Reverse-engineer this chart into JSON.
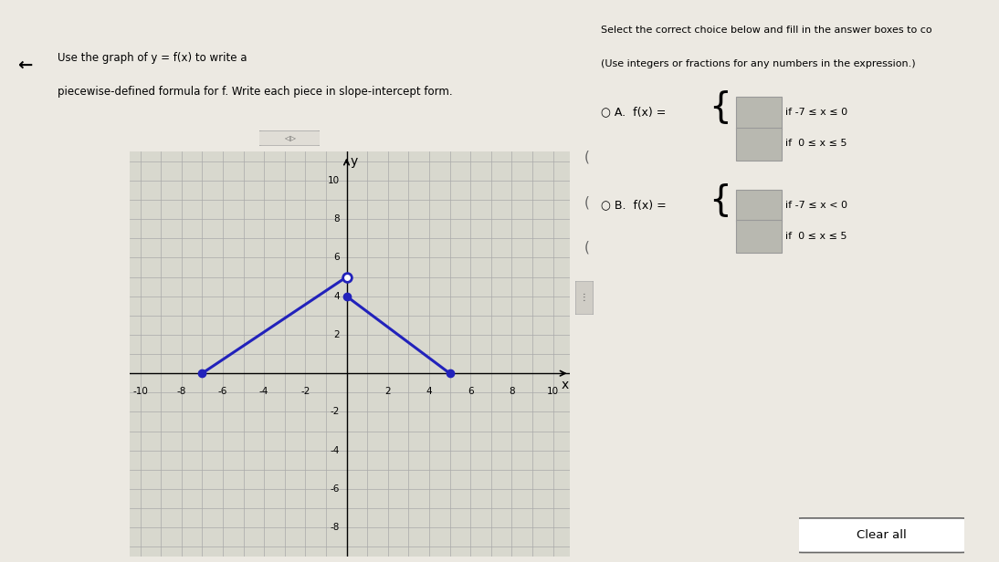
{
  "graph_xlim": [
    -10.5,
    10.8
  ],
  "graph_ylim": [
    -9.5,
    11.5
  ],
  "xticks": [
    -10,
    -8,
    -6,
    -4,
    -2,
    2,
    4,
    6,
    8,
    10
  ],
  "yticks": [
    -8,
    -6,
    -4,
    -2,
    2,
    4,
    6,
    8,
    10
  ],
  "line1_x": [
    -7,
    0
  ],
  "line1_y": [
    0,
    5
  ],
  "line2_x": [
    0,
    5
  ],
  "line2_y": [
    4,
    0
  ],
  "line_color": "#2222bb",
  "line_lw": 2.2,
  "open_circle": [
    0,
    5
  ],
  "closed_circles": [
    [
      -7,
      0
    ],
    [
      0,
      4
    ],
    [
      5,
      0
    ]
  ],
  "marker_size": 6,
  "grid_color": "#aaaaaa",
  "graph_bg": "#d8d8ce",
  "page_bg": "#ece9e2",
  "right_bg": "#f0ede6",
  "divider_color": "#bbbbbb",
  "top_bar_color": "#5b8cc4",
  "option_box_color": "#b8b8b0",
  "optionA_cond1": "if -7 ≤ x ≤ 0",
  "optionA_cond2": "if  0 ≤ x ≤ 5",
  "optionB_cond1": "if -7 ≤ x < 0",
  "optionB_cond2": "if  0 ≤ x ≤ 5"
}
